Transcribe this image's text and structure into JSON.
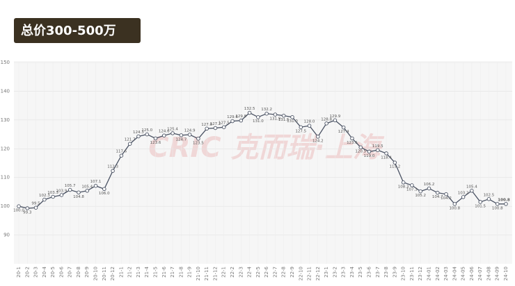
{
  "chart_data": {
    "type": "line",
    "title": "总价300-500万",
    "watermark": "CRIC 克而瑞·上海",
    "categories": [
      "20-1",
      "20-2",
      "20-3",
      "20-4",
      "20-5",
      "20-6",
      "20-7",
      "20-8",
      "20-9",
      "20-10",
      "20-11",
      "20-12",
      "21-1",
      "21-2",
      "21-3",
      "21-4",
      "21-5",
      "21-6",
      "21-7",
      "21-8",
      "21-9",
      "21-10",
      "21-11",
      "21-12",
      "22-1",
      "22-2",
      "22-3",
      "22-4",
      "22-5",
      "22-6",
      "22-7",
      "22-8",
      "22-9",
      "22-10",
      "22-11",
      "22-12",
      "23-1",
      "23-2",
      "23-3",
      "23-4",
      "23-5",
      "23-6",
      "23-7",
      "23-8",
      "23-9",
      "23-10",
      "23-11",
      "23-12",
      "24-01",
      "24-02",
      "24-03",
      "24-04",
      "24-05",
      "24-06",
      "24-07",
      "24-08",
      "24-09",
      "24-10"
    ],
    "series": [
      {
        "name": "总价300-500万",
        "color": "#4a5263",
        "highlight_color": "#d0312d",
        "values": [
          100.0,
          99.3,
          99.5,
          102.3,
          103.3,
          103.9,
          105.7,
          104.8,
          105.4,
          107.1,
          106.0,
          112.3,
          117.6,
          121.7,
          124.3,
          125.0,
          123.6,
          124.6,
          125.4,
          124.7,
          124.9,
          123.5,
          127.0,
          127.2,
          127.5,
          129.6,
          129.8,
          132.5,
          131.0,
          132.2,
          131.9,
          131.5,
          131.0,
          127.5,
          128.0,
          124.2,
          128.8,
          129.9,
          127.4,
          123.6,
          120.5,
          119.0,
          119.5,
          118.4,
          115.2,
          108.3,
          107.3,
          105.2,
          106.2,
          104.7,
          104.2,
          100.8,
          103.2,
          105.4,
          101.5,
          102.5,
          100.8,
          100.8
        ],
        "value_labels": [
          "100.0",
          "99.3",
          "99.5",
          "102.3",
          "103.3",
          "103.9",
          "105.7",
          "104.8",
          "105.4",
          "107.1",
          "106.0",
          "112.3",
          "117.6",
          "121.7",
          "124.3",
          "125.0",
          "123.6",
          "124.6",
          "125.4",
          "124.7",
          "124.9",
          "123.5",
          "127.0",
          "127.2",
          "127.5",
          "129.6",
          "129.8",
          "132.5",
          "131.0",
          "132.2",
          "131.9",
          "131.5",
          "131.0",
          "127.5",
          "128.0",
          "124.2",
          "128.8",
          "129.9",
          "127.4",
          "123.6",
          "120.5",
          "119.0",
          "119.5",
          "118.4",
          "115.2",
          "108.3",
          "107.3",
          "105.2",
          "106.2",
          "104.7",
          "104.2",
          "100.8",
          "103.2",
          "105.4",
          "101.5",
          "102.5",
          "100.8",
          "100.8"
        ]
      }
    ],
    "ylim": [
      80,
      150
    ],
    "yticks": [
      90,
      100,
      110,
      120,
      130,
      140,
      150
    ],
    "grid": true
  }
}
